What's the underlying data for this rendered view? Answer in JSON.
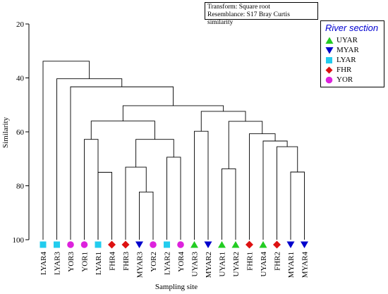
{
  "info": {
    "transform": "Transform: Square root",
    "resemblance": "Resemblance: S17 Bray Curtis similarity"
  },
  "legend": {
    "title": "River section",
    "items": [
      {
        "label": "UYAR",
        "shape": "triangle-up",
        "color": "#22cc22"
      },
      {
        "label": "MYAR",
        "shape": "triangle-down",
        "color": "#0000cc"
      },
      {
        "label": "LYAR",
        "shape": "square",
        "color": "#22ccee"
      },
      {
        "label": "FHR",
        "shape": "diamond",
        "color": "#dd1111"
      },
      {
        "label": "YOR",
        "shape": "circle",
        "color": "#dd22dd"
      }
    ]
  },
  "chart_data": {
    "type": "dendrogram",
    "xlabel": "Sampling site",
    "ylabel": "Similarity",
    "ylim": [
      100,
      20
    ],
    "yticks": [
      20,
      40,
      60,
      80,
      100
    ],
    "leaves": [
      {
        "label": "LYAR4",
        "group": "LYAR"
      },
      {
        "label": "LYAR3",
        "group": "LYAR"
      },
      {
        "label": "YOR3",
        "group": "YOR"
      },
      {
        "label": "YOR1",
        "group": "YOR"
      },
      {
        "label": "LYAR1",
        "group": "LYAR"
      },
      {
        "label": "FHR4",
        "group": "FHR"
      },
      {
        "label": "FHR3",
        "group": "FHR"
      },
      {
        "label": "MYAR3",
        "group": "MYAR"
      },
      {
        "label": "YOR2",
        "group": "YOR"
      },
      {
        "label": "LYAR2",
        "group": "LYAR"
      },
      {
        "label": "YOR4",
        "group": "YOR"
      },
      {
        "label": "UYAR3",
        "group": "UYAR"
      },
      {
        "label": "MYAR2",
        "group": "MYAR"
      },
      {
        "label": "UYAR1",
        "group": "UYAR"
      },
      {
        "label": "UYAR2",
        "group": "UYAR"
      },
      {
        "label": "FHR1",
        "group": "FHR"
      },
      {
        "label": "UYAR4",
        "group": "UYAR"
      },
      {
        "label": "FHR2",
        "group": "FHR"
      },
      {
        "label": "MYAR1",
        "group": "MYAR"
      },
      {
        "label": "MYAR4",
        "group": "MYAR"
      }
    ],
    "merges": [
      {
        "id": "m1",
        "children": [
          "YOR1",
          "LYAR1"
        ],
        "similarity": 62.8
      },
      {
        "id": "m2",
        "children": [
          "LYAR1",
          "FHR4"
        ],
        "similarity": 75.0
      },
      {
        "id": "m3",
        "children": [
          "MYAR3",
          "YOR2"
        ],
        "similarity": 82.3
      },
      {
        "id": "m4",
        "children": [
          "FHR3",
          "m3"
        ],
        "similarity": 73.1
      },
      {
        "id": "m5",
        "children": [
          "LYAR2",
          "YOR4"
        ],
        "similarity": 69.4
      },
      {
        "id": "m6",
        "children": [
          "m4",
          "m5"
        ],
        "similarity": 62.8
      },
      {
        "id": "m7",
        "children": [
          "m1",
          "m6"
        ],
        "similarity": 56.0
      },
      {
        "id": "m8",
        "children": [
          "UYAR3",
          "MYAR2"
        ],
        "similarity": 59.8
      },
      {
        "id": "m9",
        "children": [
          "UYAR1",
          "UYAR2"
        ],
        "similarity": 73.7
      },
      {
        "id": "m10",
        "children": [
          "MYAR1",
          "MYAR4"
        ],
        "similarity": 74.9
      },
      {
        "id": "m11",
        "children": [
          "FHR2",
          "m10"
        ],
        "similarity": 65.5
      },
      {
        "id": "m12",
        "children": [
          "UYAR4",
          "m11"
        ],
        "similarity": 63.4
      },
      {
        "id": "m13",
        "children": [
          "FHR1",
          "m12"
        ],
        "similarity": 60.7
      },
      {
        "id": "m14",
        "children": [
          "m9",
          "m13"
        ],
        "similarity": 56.1
      },
      {
        "id": "m15",
        "children": [
          "m8",
          "m14"
        ],
        "similarity": 52.4
      },
      {
        "id": "m16",
        "children": [
          "m7",
          "m15"
        ],
        "similarity": 50.3
      },
      {
        "id": "m17",
        "children": [
          "YOR3",
          "m16"
        ],
        "similarity": 43.3
      },
      {
        "id": "m18",
        "children": [
          "LYAR3",
          "m17"
        ],
        "similarity": 40.3
      },
      {
        "id": "m19",
        "children": [
          "LYAR4",
          "m18"
        ],
        "similarity": 33.8
      }
    ]
  }
}
